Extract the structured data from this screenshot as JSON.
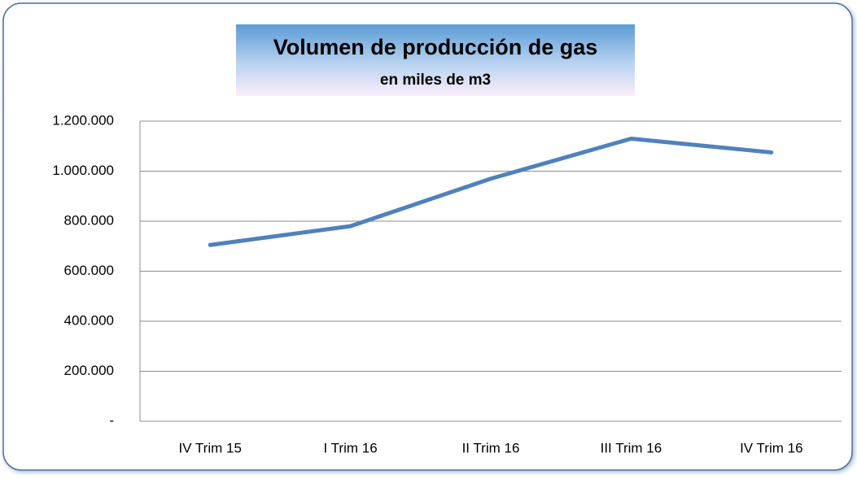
{
  "chart_data": {
    "type": "line",
    "title": "Volumen de producción de gas",
    "subtitle": "en miles de m3",
    "categories": [
      "IV Trim 15",
      "I Trim 16",
      "II Trim 16",
      "III Trim 16",
      "IV Trim 16"
    ],
    "values": [
      705000,
      780000,
      970000,
      1130000,
      1075000
    ],
    "color": "#4f81bd",
    "ylim": [
      0,
      1200000
    ],
    "yticks": [
      {
        "value": 0,
        "label": "-"
      },
      {
        "value": 200000,
        "label": "200.000"
      },
      {
        "value": 400000,
        "label": "400.000"
      },
      {
        "value": 600000,
        "label": "600.000"
      },
      {
        "value": 800000,
        "label": "800.000"
      },
      {
        "value": 1000000,
        "label": "1.000.000"
      },
      {
        "value": 1200000,
        "label": "1.200.000"
      }
    ],
    "grid": true
  }
}
